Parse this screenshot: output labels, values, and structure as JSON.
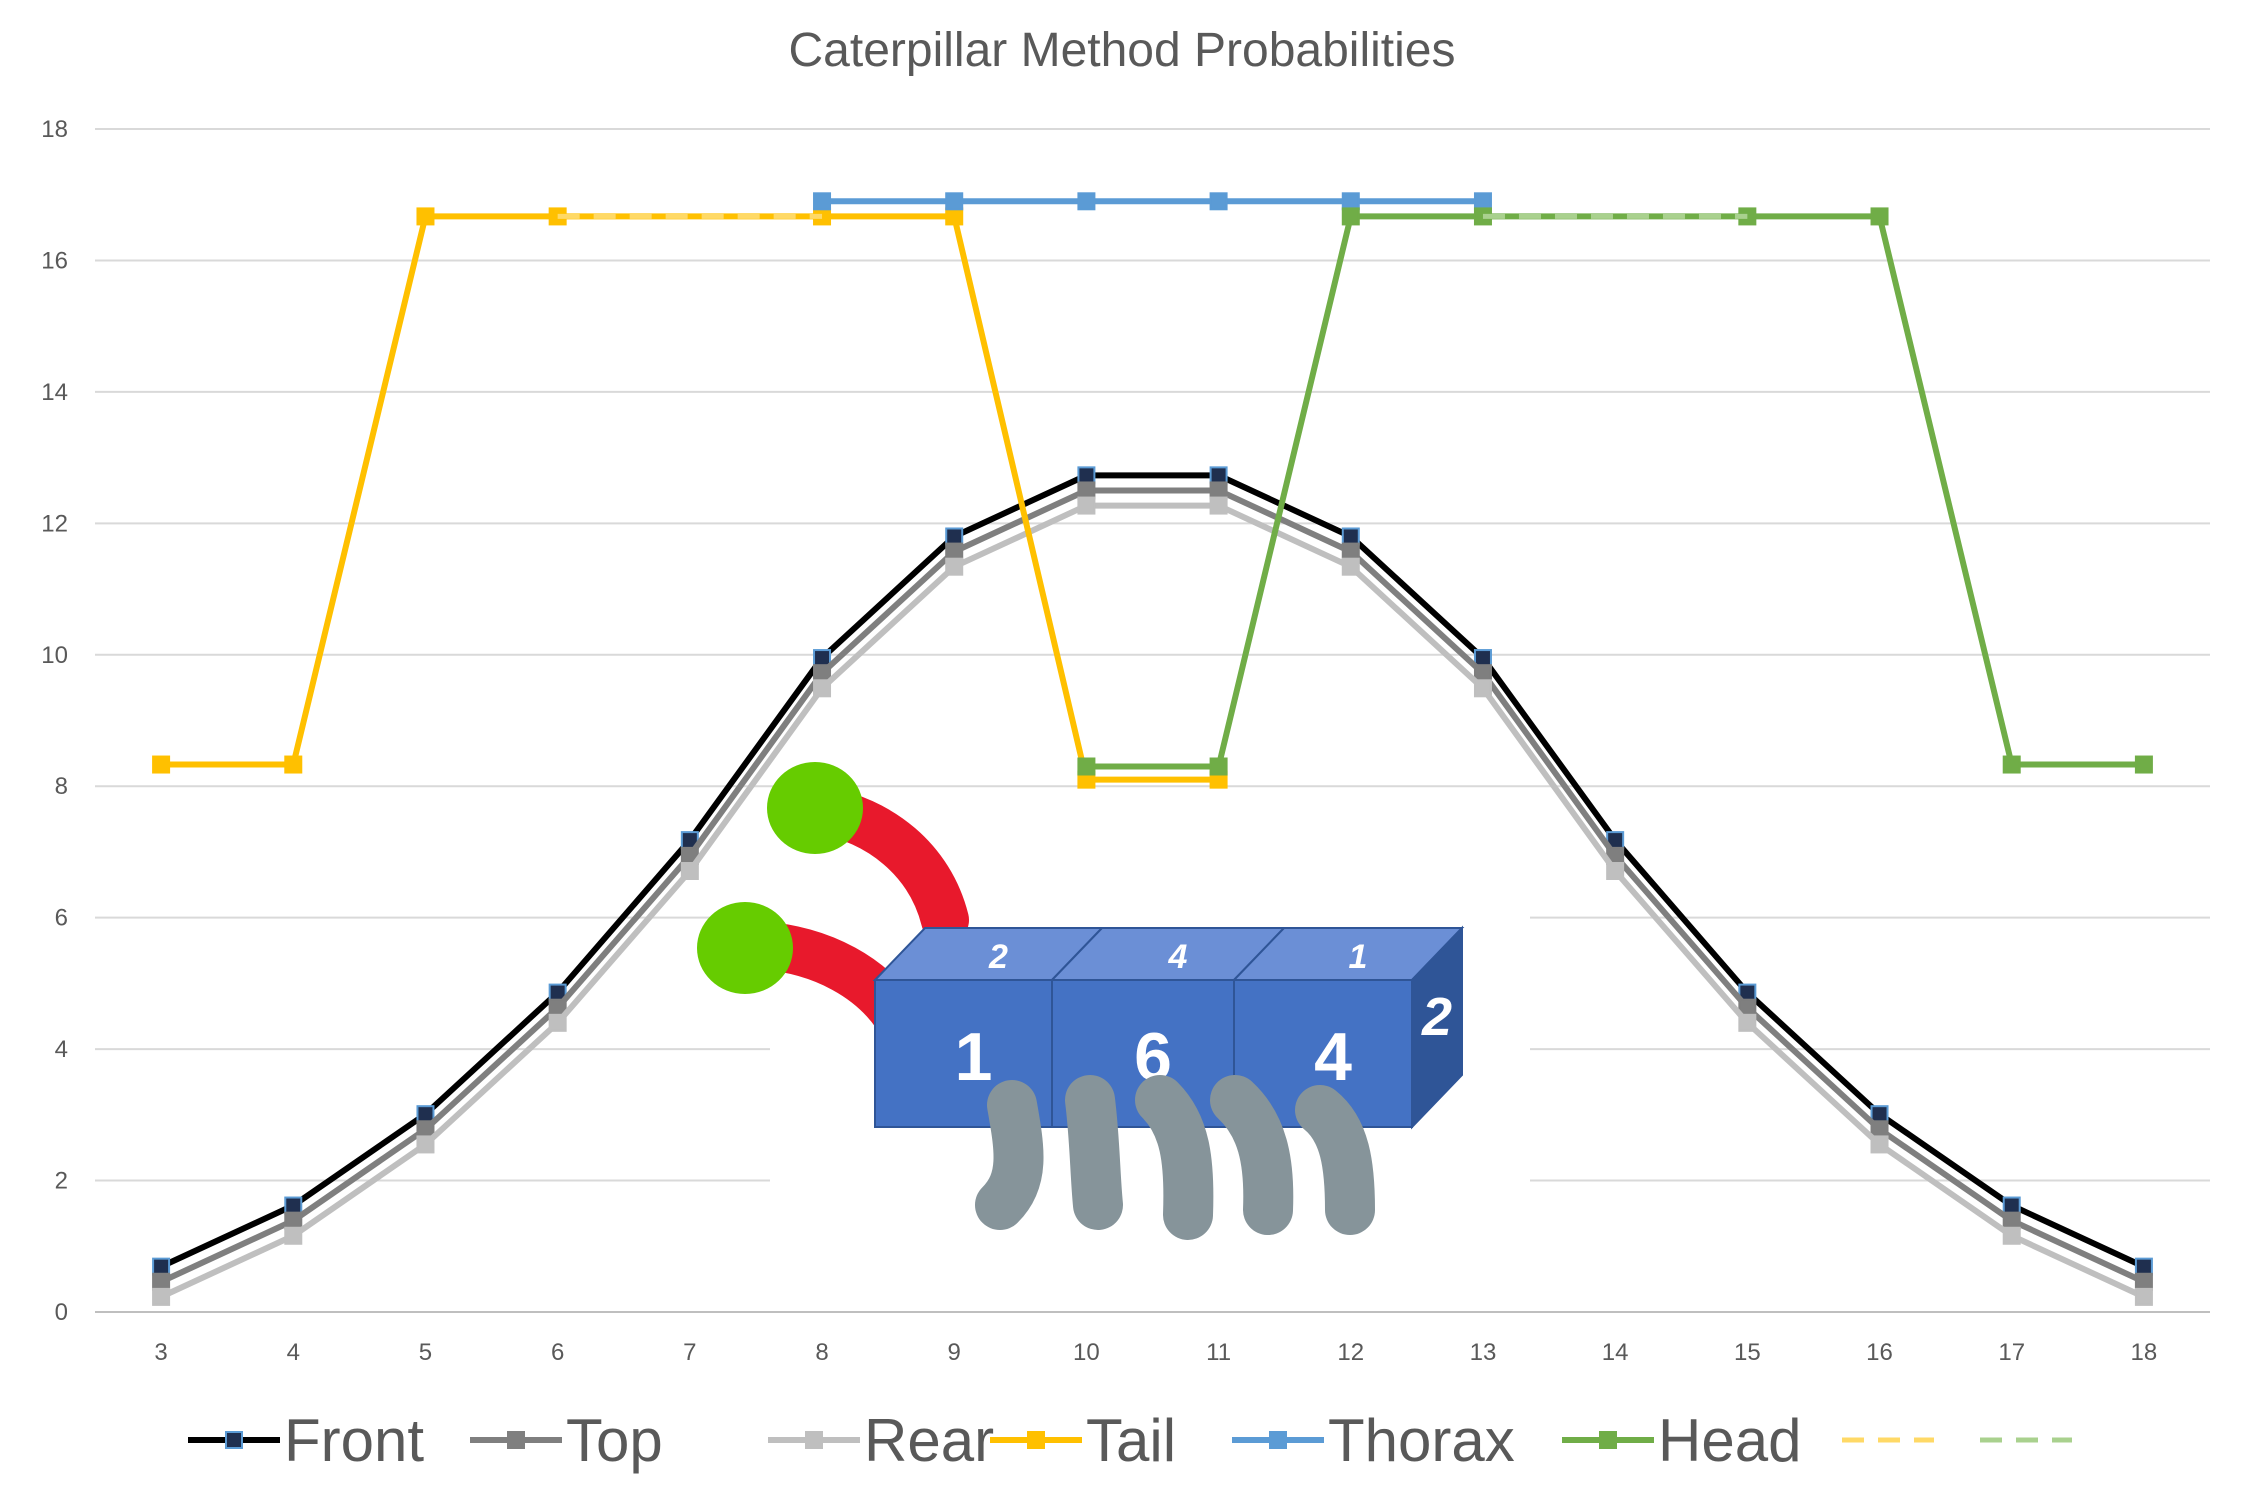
{
  "chart_data": {
    "type": "line",
    "title": "Caterpillar Method Probabilities",
    "xlabel": "",
    "ylabel": "",
    "categories": [
      3,
      4,
      5,
      6,
      7,
      8,
      9,
      10,
      11,
      12,
      13,
      14,
      15,
      16,
      17,
      18
    ],
    "ylim": [
      0,
      18
    ],
    "yticks": [
      0,
      2,
      4,
      6,
      8,
      10,
      12,
      14,
      16,
      18
    ],
    "grid": "horizontal",
    "legend_position": "bottom",
    "series": [
      {
        "name": "Front",
        "color": "#000000",
        "marker_fill": "#1f2f4f",
        "dash": false,
        "x": [
          3,
          4,
          5,
          6,
          7,
          8,
          9,
          10,
          11,
          12,
          13,
          14,
          15,
          16,
          17,
          18
        ],
        "values": [
          0.69,
          1.62,
          3.01,
          4.86,
          7.18,
          9.95,
          11.8,
          12.73,
          12.73,
          11.8,
          9.95,
          7.18,
          4.86,
          3.01,
          1.62,
          0.69
        ]
      },
      {
        "name": "Top",
        "color": "#7f7f7f",
        "marker_fill": "#7f7f7f",
        "dash": false,
        "x": [
          3,
          4,
          5,
          6,
          7,
          8,
          9,
          10,
          11,
          12,
          13,
          14,
          15,
          16,
          17,
          18
        ],
        "values": [
          0.46,
          1.39,
          2.78,
          4.63,
          6.94,
          9.72,
          11.57,
          12.5,
          12.5,
          11.57,
          9.72,
          6.94,
          4.63,
          2.78,
          1.39,
          0.46
        ]
      },
      {
        "name": "Rear",
        "color": "#bfbfbf",
        "marker_fill": "#bfbfbf",
        "dash": false,
        "x": [
          3,
          4,
          5,
          6,
          7,
          8,
          9,
          10,
          11,
          12,
          13,
          14,
          15,
          16,
          17,
          18
        ],
        "values": [
          0.23,
          1.16,
          2.55,
          4.4,
          6.71,
          9.49,
          11.34,
          12.27,
          12.27,
          11.34,
          9.49,
          6.71,
          4.4,
          2.55,
          1.16,
          0.23
        ]
      },
      {
        "name": "Tail",
        "color": "#ffc000",
        "marker_fill": "#ffc000",
        "dash": false,
        "x": [
          3,
          4,
          5,
          6,
          8,
          9,
          10,
          11
        ],
        "values": [
          8.33,
          8.33,
          16.67,
          16.67,
          16.67,
          16.67,
          8.1,
          8.1
        ]
      },
      {
        "name": "Thorax",
        "color": "#5b9bd5",
        "marker_fill": "#5b9bd5",
        "dash": false,
        "x": [
          8,
          9,
          10,
          11,
          12,
          13
        ],
        "values": [
          16.9,
          16.9,
          16.9,
          16.9,
          16.9,
          16.9
        ]
      },
      {
        "name": "Head",
        "color": "#70ad47",
        "marker_fill": "#70ad47",
        "dash": false,
        "x": [
          10,
          11,
          12,
          13,
          15,
          16,
          17,
          18
        ],
        "values": [
          8.3,
          8.3,
          16.67,
          16.67,
          16.67,
          16.67,
          8.33,
          8.33
        ]
      },
      {
        "name": "",
        "color": "#ffd966",
        "marker_fill": "none",
        "dash": true,
        "x": [
          6,
          8
        ],
        "values": [
          16.67,
          16.67
        ]
      },
      {
        "name": "",
        "color": "#a9d18e",
        "marker_fill": "none",
        "dash": true,
        "x": [
          13,
          15
        ],
        "values": [
          16.67,
          16.67
        ]
      }
    ]
  },
  "illustration": {
    "description_icon": "caterpillar-dice-icon",
    "dice_front_faces": [
      "1",
      "6",
      "4"
    ],
    "dice_top_faces": [
      "2",
      "4",
      "1"
    ],
    "side_face": "2",
    "colors": {
      "die": "#4472c4",
      "die_top": "#6b8fd6",
      "die_side": "#2f5597",
      "antenna": "#e8192c",
      "antenna_tip": "#66cc00",
      "legs": "#86949a"
    }
  }
}
